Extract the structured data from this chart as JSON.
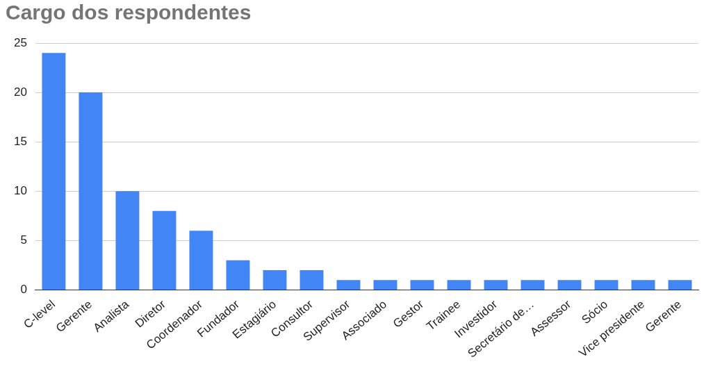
{
  "chart_data": {
    "type": "bar",
    "title": "Cargo dos respondentes",
    "categories": [
      "C-level",
      "Gerente",
      "Analista",
      "Diretor",
      "Coordenador",
      "Fundador",
      "Estagiário",
      "Consultor",
      "Supervisor",
      "Associado",
      "Gestor",
      "Trainee",
      "Investidor",
      "Secretário de…",
      "Assessor",
      "Sócio",
      "Vice presidente",
      "Gerente"
    ],
    "values": [
      24,
      20,
      10,
      8,
      6,
      3,
      2,
      2,
      1,
      1,
      1,
      1,
      1,
      1,
      1,
      1,
      1,
      1
    ],
    "color": "#4285f4",
    "ylim": [
      0,
      25
    ],
    "yticks": [
      0,
      5,
      10,
      15,
      20,
      25
    ],
    "grid": "y",
    "legend": false
  }
}
